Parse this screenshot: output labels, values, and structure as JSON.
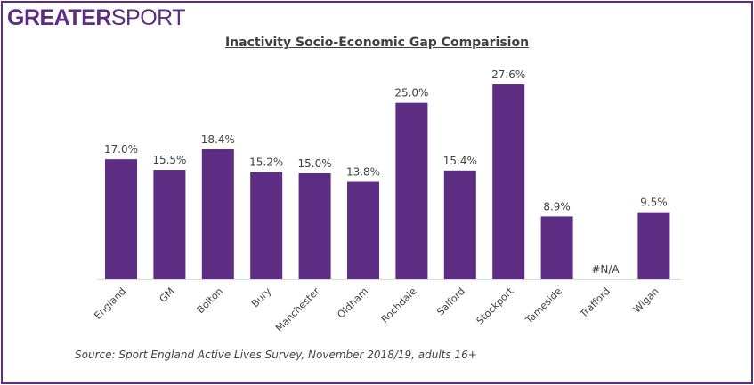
{
  "logo": {
    "bold": "GREATER",
    "light": "SPORT"
  },
  "chart_data": {
    "type": "bar",
    "title": "Inactivity Socio-Economic Gap Comparision",
    "categories": [
      "England",
      "GM",
      "Bolton",
      "Bury",
      "Manchester",
      "Oldham",
      "Rochdale",
      "Salford",
      "Stockport",
      "Tameside",
      "Trafford",
      "Wigan"
    ],
    "values": [
      17.0,
      15.5,
      18.4,
      15.2,
      15.0,
      13.8,
      25.0,
      15.4,
      27.6,
      8.9,
      null,
      9.5
    ],
    "data_labels": [
      "17.0%",
      "15.5%",
      "18.4%",
      "15.2%",
      "15.0%",
      "13.8%",
      "25.0%",
      "15.4%",
      "27.6%",
      "8.9%",
      "#N/A",
      "9.5%"
    ],
    "ylim": [
      0,
      30
    ],
    "grid": false,
    "bar_color": "#5c2d82"
  },
  "source": "Source: Sport England Active Lives Survey, November 2018/19, adults 16+"
}
